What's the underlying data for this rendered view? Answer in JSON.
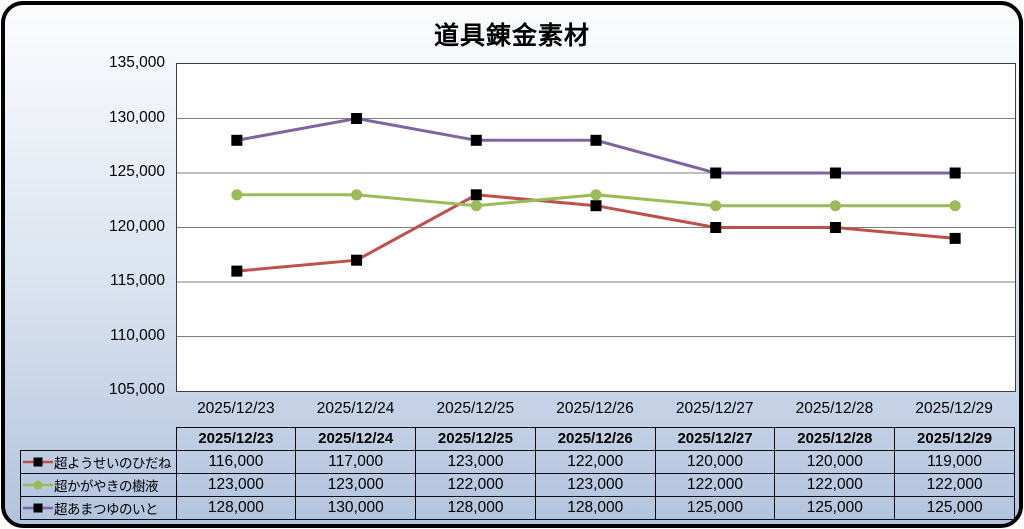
{
  "chart_data": {
    "type": "line",
    "title": "道具錬金素材",
    "categories": [
      "2025/12/23",
      "2025/12/24",
      "2025/12/25",
      "2025/12/26",
      "2025/12/27",
      "2025/12/28",
      "2025/12/29"
    ],
    "series": [
      {
        "name": "超ようせいのひだね",
        "line_color": "#c0504d",
        "marker": "square",
        "marker_color": "#000000",
        "values": [
          116000,
          117000,
          123000,
          122000,
          120000,
          120000,
          119000
        ]
      },
      {
        "name": "超かがやきの樹液",
        "line_color": "#9bbb59",
        "marker": "circle",
        "marker_color": "#9bbb59",
        "values": [
          123000,
          123000,
          122000,
          123000,
          122000,
          122000,
          122000
        ]
      },
      {
        "name": "超あまつゆのいと",
        "line_color": "#8064a2",
        "marker": "square",
        "marker_color": "#000000",
        "values": [
          128000,
          130000,
          128000,
          128000,
          125000,
          125000,
          125000
        ]
      }
    ],
    "ylim": [
      105000,
      135000
    ],
    "ytick_step": 5000,
    "ytick_labels": [
      "135,000",
      "130,000",
      "125,000",
      "120,000",
      "115,000",
      "110,000",
      "105,000"
    ],
    "grid": "horizontal",
    "gridline_color": "#7f7f7f",
    "plot_border_color": "#3f3f3f",
    "legend_position": "table"
  },
  "table": {
    "header": [
      "2025/12/23",
      "2025/12/24",
      "2025/12/25",
      "2025/12/26",
      "2025/12/27",
      "2025/12/28",
      "2025/12/29"
    ],
    "rows": [
      {
        "label": "超ようせいのひだね",
        "values": [
          "116,000",
          "117,000",
          "123,000",
          "122,000",
          "120,000",
          "120,000",
          "119,000"
        ]
      },
      {
        "label": "超かがやきの樹液",
        "values": [
          "123,000",
          "123,000",
          "122,000",
          "123,000",
          "122,000",
          "122,000",
          "122,000"
        ]
      },
      {
        "label": "超あまつゆのいと",
        "values": [
          "128,000",
          "130,000",
          "128,000",
          "128,000",
          "125,000",
          "125,000",
          "125,000"
        ]
      }
    ]
  },
  "colors": {
    "frame_border": "#000000",
    "background_top": "#fbfdfe",
    "background_bottom": "#b2c4dd",
    "text": "#000000"
  }
}
